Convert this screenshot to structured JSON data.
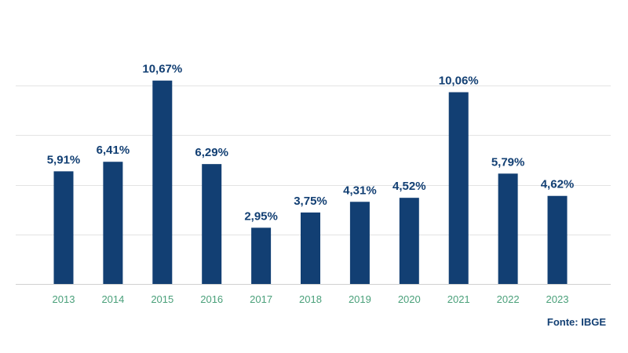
{
  "chart_data": {
    "type": "bar",
    "categories": [
      "2013",
      "2014",
      "2015",
      "2016",
      "2017",
      "2018",
      "2019",
      "2020",
      "2021",
      "2022",
      "2023"
    ],
    "values": [
      5.91,
      6.41,
      10.67,
      6.29,
      2.95,
      3.75,
      4.31,
      4.52,
      10.06,
      5.79,
      4.62
    ],
    "labels": [
      "5,91%",
      "6,41%",
      "10,67%",
      "6,29%",
      "2,95%",
      "3,75%",
      "4,31%",
      "4,52%",
      "10,06%",
      "5,79%",
      "4,62%"
    ],
    "title": "",
    "xlabel": "",
    "ylabel": "",
    "ylim": [
      0,
      12
    ],
    "grid": true,
    "bar_color": "#123f73",
    "tick_color": "#4aa07a",
    "grid_color": "#e3e3e3"
  },
  "source": "Fonte: IBGE"
}
